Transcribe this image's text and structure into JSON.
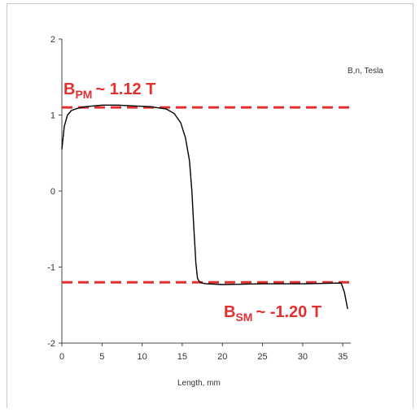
{
  "chart_data": {
    "type": "line",
    "xlabel": "Length, mm",
    "ylabel": "B,n, Tesla",
    "xlim": [
      0,
      36
    ],
    "ylim": [
      -2,
      2
    ],
    "x_ticks": [
      "0",
      "5",
      "10",
      "15",
      "20",
      "25",
      "30",
      "35"
    ],
    "y_ticks": [
      "2",
      "1",
      "0",
      "-1",
      "-2"
    ],
    "grid": false,
    "series": [
      {
        "color": "#000000",
        "x": [
          0,
          0.3,
          0.7,
          1.2,
          2,
          3,
          5,
          7,
          9,
          11,
          13,
          14,
          14.8,
          15.4,
          15.9,
          16.2,
          16.45,
          16.7,
          16.9,
          17.2,
          17.5,
          18,
          20,
          25,
          30,
          34.8,
          35.2,
          35.6
        ],
        "y": [
          0.55,
          0.85,
          1.0,
          1.06,
          1.09,
          1.11,
          1.13,
          1.13,
          1.12,
          1.11,
          1.08,
          1.02,
          0.9,
          0.7,
          0.4,
          0.0,
          -0.5,
          -0.95,
          -1.15,
          -1.2,
          -1.21,
          -1.22,
          -1.23,
          -1.22,
          -1.22,
          -1.21,
          -1.33,
          -1.55
        ]
      }
    ],
    "reference_lines": [
      {
        "y": 1.1,
        "color": "#e03030",
        "style": "dashed",
        "label_main": "B",
        "label_sub": "PM",
        "label_rest": "~ 1.12 T"
      },
      {
        "y": -1.2,
        "color": "#e03030",
        "style": "dashed",
        "label_main": "B",
        "label_sub": "SM",
        "label_rest": "~ -1.20 T"
      }
    ]
  }
}
